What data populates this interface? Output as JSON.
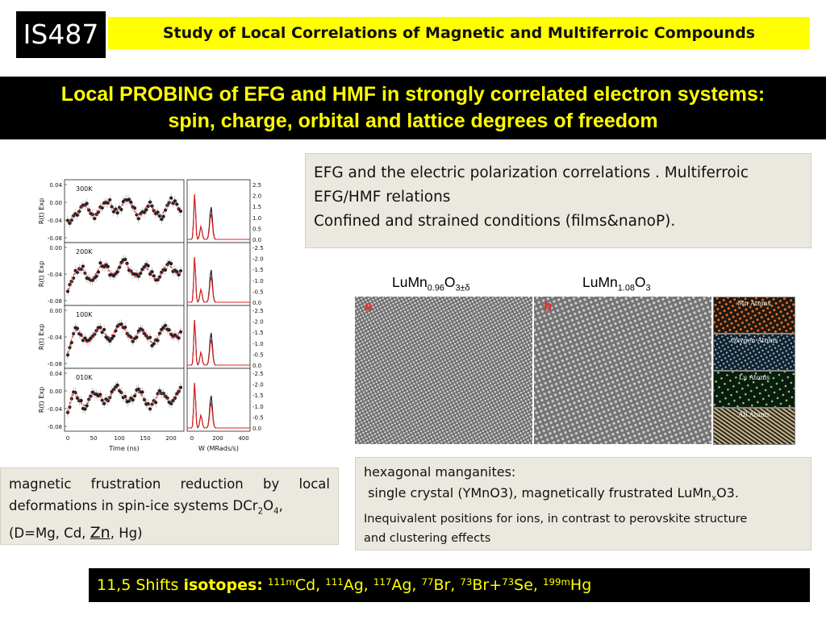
{
  "header": {
    "badge": "IS487",
    "title": "Study of Local Correlations of Magnetic and Multiferroic Compounds"
  },
  "banner": {
    "line1_a": "Local PROBING of EFG and HMF in ",
    "line1_b": "strongly correlated electron systems:",
    "line2": "spin, charge, orbital and lattice degrees of freedom"
  },
  "efg_panel": {
    "line1": "EFG and the electric polarization correlations . Multiferroic",
    "line2": "EFG/HMF relations",
    "line3": "Confined and strained conditions (films&nanoP)."
  },
  "formulas": {
    "a_base": "LuMn",
    "a_sub1": "0.96",
    "a_o": "O",
    "a_sub2": "3±δ",
    "b_base": "LuMn",
    "b_sub1": "1.08",
    "b_o": "O",
    "b_sub2": "3"
  },
  "tem": {
    "label_a": "a",
    "label_b": "b",
    "insets": [
      "Mn Atoms",
      "Oxygen Atoms",
      "Lu Atoms",
      "All Atoms"
    ]
  },
  "mag_panel": {
    "text1": "magnetic frustration reduction by local deformations in spin-ice systems DCr",
    "sub1": "2",
    "text2": "O",
    "sub2": "4",
    "text3": ",",
    "text4": "(D=Mg, Cd, ",
    "zn": "Zn",
    "text5": ", Hg)"
  },
  "hex_panel": {
    "line1": "hexagonal manganites:",
    "line2a": " single crystal (YMnO3), magnetically frustrated LuMn",
    "line2sub": "x",
    "line2b": "O3.",
    "line3": "Inequivalent positions for ions, in contrast to perovskite structure",
    "line4": "and clustering effects"
  },
  "isotopes": {
    "lead": "11,5 Shifts ",
    "bold": "isotopes:",
    "items": [
      {
        "mass": "111m",
        "el": "Cd, "
      },
      {
        "mass": "111",
        "el": "Ag, "
      },
      {
        "mass": "117",
        "el": "Ag, "
      },
      {
        "mass": "77",
        "el": "Br, "
      },
      {
        "mass": "73",
        "el": "Br+"
      },
      {
        "mass": "73",
        "el": "Se, "
      },
      {
        "mass": "199m",
        "el": "Hg"
      }
    ]
  },
  "figure": {
    "temps": [
      "300K",
      "200K",
      "100K",
      "010K"
    ],
    "left_ylabel": "R(t) Exp",
    "left_yticks": [
      [
        "0.04",
        "0.00",
        "-0.04",
        "-0.08"
      ],
      [
        "0.00",
        "-0.04",
        "-0.08"
      ],
      [
        "0.00",
        "-0.04",
        "-0.08"
      ],
      [
        "0.04",
        "0.00",
        "-0.04",
        "-0.08"
      ]
    ],
    "left_xticks": [
      "0",
      "50",
      "100",
      "150",
      "200"
    ],
    "left_xlabel": "Time (ns)",
    "right_yticks": [
      [
        "2.5",
        "2.0",
        "1.5",
        "1.0",
        "0.5",
        "0.0"
      ],
      [
        "-2.5",
        "-2.0",
        "-1.5",
        "-1.0",
        "-0.5",
        "0.0"
      ],
      [
        "-2.5",
        "-2.0",
        "-1.5",
        "-1.0",
        "-0.5",
        "0.0"
      ],
      [
        "-2.5",
        "-2.0",
        "-1.5",
        "-1.0",
        "-0.5",
        "0.0"
      ]
    ],
    "right_xticks": [
      "0",
      "200",
      "400"
    ],
    "right_xlabel": "W (MRads/s)"
  },
  "colors": {
    "yellow": "#ffff00",
    "black": "#000000",
    "panel": "#ebe9df",
    "fit_red": "#e02020"
  }
}
